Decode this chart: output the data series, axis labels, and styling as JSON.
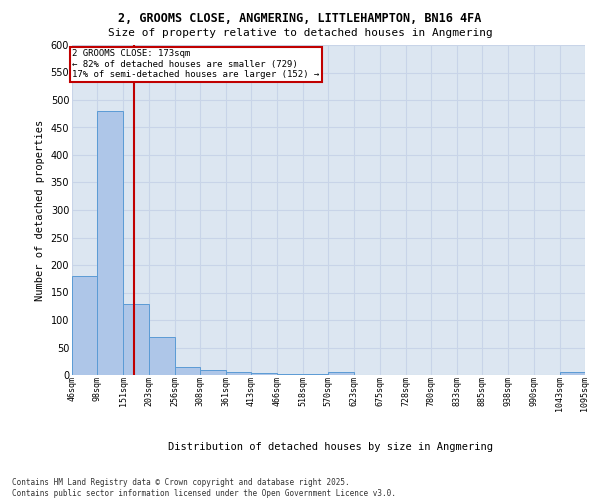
{
  "title_line1": "2, GROOMS CLOSE, ANGMERING, LITTLEHAMPTON, BN16 4FA",
  "title_line2": "Size of property relative to detached houses in Angmering",
  "xlabel": "Distribution of detached houses by size in Angmering",
  "ylabel": "Number of detached properties",
  "footnote": "Contains HM Land Registry data © Crown copyright and database right 2025.\nContains public sector information licensed under the Open Government Licence v3.0.",
  "bin_edges": [
    46,
    98,
    151,
    203,
    256,
    308,
    361,
    413,
    466,
    518,
    570,
    623,
    675,
    728,
    780,
    833,
    885,
    938,
    990,
    1043,
    1095
  ],
  "bar_heights": [
    180,
    480,
    130,
    70,
    15,
    10,
    5,
    3,
    2,
    1,
    5,
    0,
    0,
    0,
    0,
    0,
    0,
    0,
    0,
    5
  ],
  "bar_color": "#aec6e8",
  "bar_edge_color": "#5b9bd5",
  "background_color": "#dce6f1",
  "grid_color": "#c8d4e8",
  "red_line_x": 173,
  "annotation_text": "2 GROOMS CLOSE: 173sqm\n← 82% of detached houses are smaller (729)\n17% of semi-detached houses are larger (152) →",
  "annotation_box_color": "#ffffff",
  "annotation_box_edge_color": "#c00000",
  "annotation_text_color": "#000000",
  "red_line_color": "#c00000",
  "ylim": [
    0,
    600
  ],
  "yticks": [
    0,
    50,
    100,
    150,
    200,
    250,
    300,
    350,
    400,
    450,
    500,
    550,
    600
  ]
}
